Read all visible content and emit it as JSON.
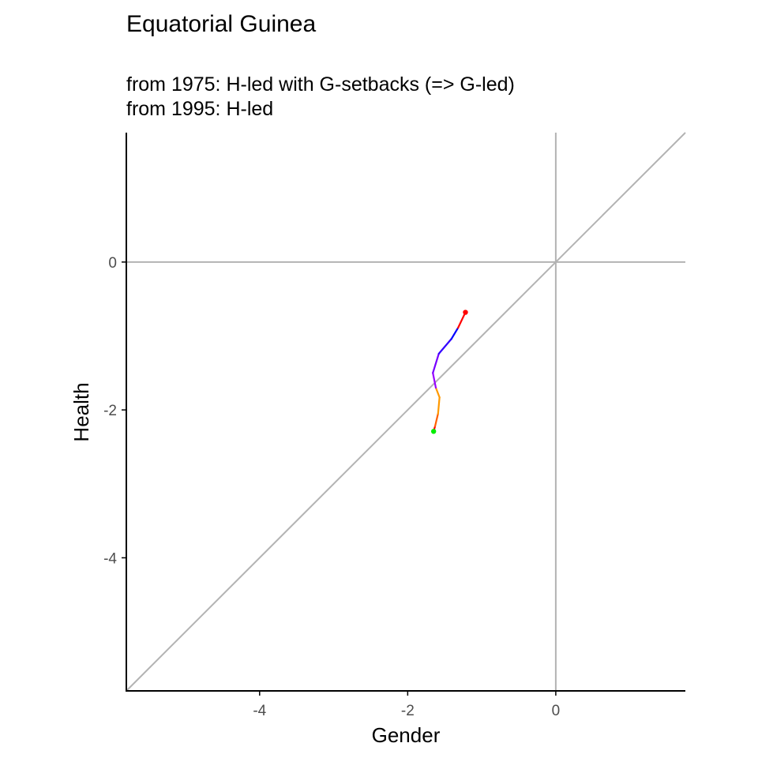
{
  "chart_data": {
    "type": "line",
    "title": "Equatorial Guinea",
    "subtitle_lines": [
      "from 1975:  H-led with G-setbacks (=> G-led)",
      "from 1995:  H-led"
    ],
    "xlabel": "Gender",
    "ylabel": "Health",
    "xlim": [
      -5.8,
      1.75
    ],
    "ylim": [
      -5.8,
      1.75
    ],
    "x_ticks": [
      -4,
      -2,
      0
    ],
    "y_ticks": [
      0,
      -2,
      -4
    ],
    "reference_lines": {
      "vertical_x": 0,
      "horizontal_y": 0,
      "diagonal": "y = x"
    },
    "grid": false,
    "path": [
      {
        "x": -1.65,
        "y": -2.29,
        "color": "#00ee00"
      },
      {
        "x": -1.63,
        "y": -2.22,
        "color": "#ff0000"
      },
      {
        "x": -1.59,
        "y": -2.05,
        "color": "#ff6000"
      },
      {
        "x": -1.57,
        "y": -1.83,
        "color": "#ff9900"
      },
      {
        "x": -1.62,
        "y": -1.7,
        "color": "#ff9900"
      },
      {
        "x": -1.66,
        "y": -1.5,
        "color": "#9900ff"
      },
      {
        "x": -1.58,
        "y": -1.24,
        "color": "#7700ff"
      },
      {
        "x": -1.41,
        "y": -1.04,
        "color": "#3300ff"
      },
      {
        "x": -1.32,
        "y": -0.89,
        "color": "#0000ff"
      },
      {
        "x": -1.22,
        "y": -0.68,
        "color": "#ff0000"
      }
    ],
    "start_point": {
      "x": -1.65,
      "y": -2.29,
      "color": "#00ee00"
    },
    "end_point": {
      "x": -1.22,
      "y": -0.68,
      "color": "#ff0000"
    },
    "colors": {
      "reference": "#b3b3b3",
      "axis": "#000000"
    }
  }
}
